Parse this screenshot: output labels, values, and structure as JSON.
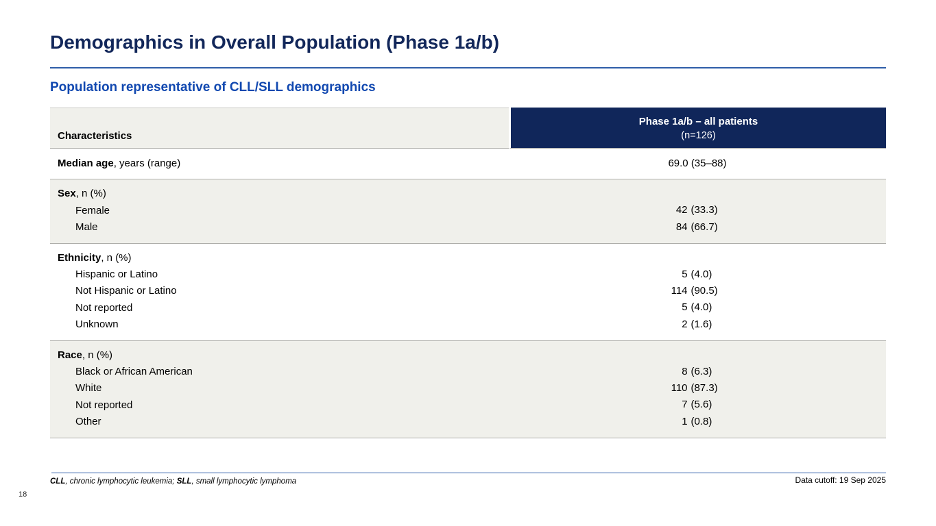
{
  "slide": {
    "title": "Demographics in Overall Population (Phase 1a/b)",
    "subtitle": "Population representative of CLL/SLL demographics",
    "page_number": "18",
    "data_cutoff": "Data cutoff: 19 Sep 2025",
    "footnote": {
      "abbr1": "CLL",
      "text1": ", chronic lymphocytic leukemia; ",
      "abbr2": "SLL",
      "text2": ", small lymphocytic lymphoma"
    }
  },
  "table": {
    "col1_header": "Characteristics",
    "col2_header_line1": "Phase 1a/b – all patients",
    "col2_header_line2": "(n=126)",
    "sections": [
      {
        "label_bold": "Median age",
        "label_rest": ", years (range)",
        "shaded": false,
        "value": "69.0 (35–88)"
      },
      {
        "label_bold": "Sex",
        "label_rest": ", n (%)",
        "shaded": true,
        "items": [
          {
            "label": "Female",
            "num": "42",
            "pct": "(33.3)"
          },
          {
            "label": "Male",
            "num": "84",
            "pct": "(66.7)"
          }
        ]
      },
      {
        "label_bold": "Ethnicity",
        "label_rest": ", n (%)",
        "shaded": false,
        "items": [
          {
            "label": "Hispanic or Latino",
            "num": "5",
            "pct": "(4.0)"
          },
          {
            "label": "Not Hispanic or Latino",
            "num": "114",
            "pct": "(90.5)"
          },
          {
            "label": "Not reported",
            "num": "5",
            "pct": "(4.0)"
          },
          {
            "label": "Unknown",
            "num": "2",
            "pct": "(1.6)"
          }
        ]
      },
      {
        "label_bold": "Race",
        "label_rest": ", n (%)",
        "shaded": true,
        "items": [
          {
            "label": "Black or African American",
            "num": "8",
            "pct": "(6.3)"
          },
          {
            "label": "White",
            "num": "110",
            "pct": "(87.3)"
          },
          {
            "label": "Not reported",
            "num": "7",
            "pct": "(5.6)"
          },
          {
            "label": "Other",
            "num": "1",
            "pct": "(0.8)"
          }
        ]
      }
    ]
  },
  "colors": {
    "title-navy": "#12275a",
    "subtitle-blue": "#1148b0",
    "rule-blue": "#2d5da8",
    "header-navy": "#10265a",
    "header-text": "#ffffff",
    "shade-gray": "#f0f0eb",
    "line-gray": "#aeaeaa"
  }
}
